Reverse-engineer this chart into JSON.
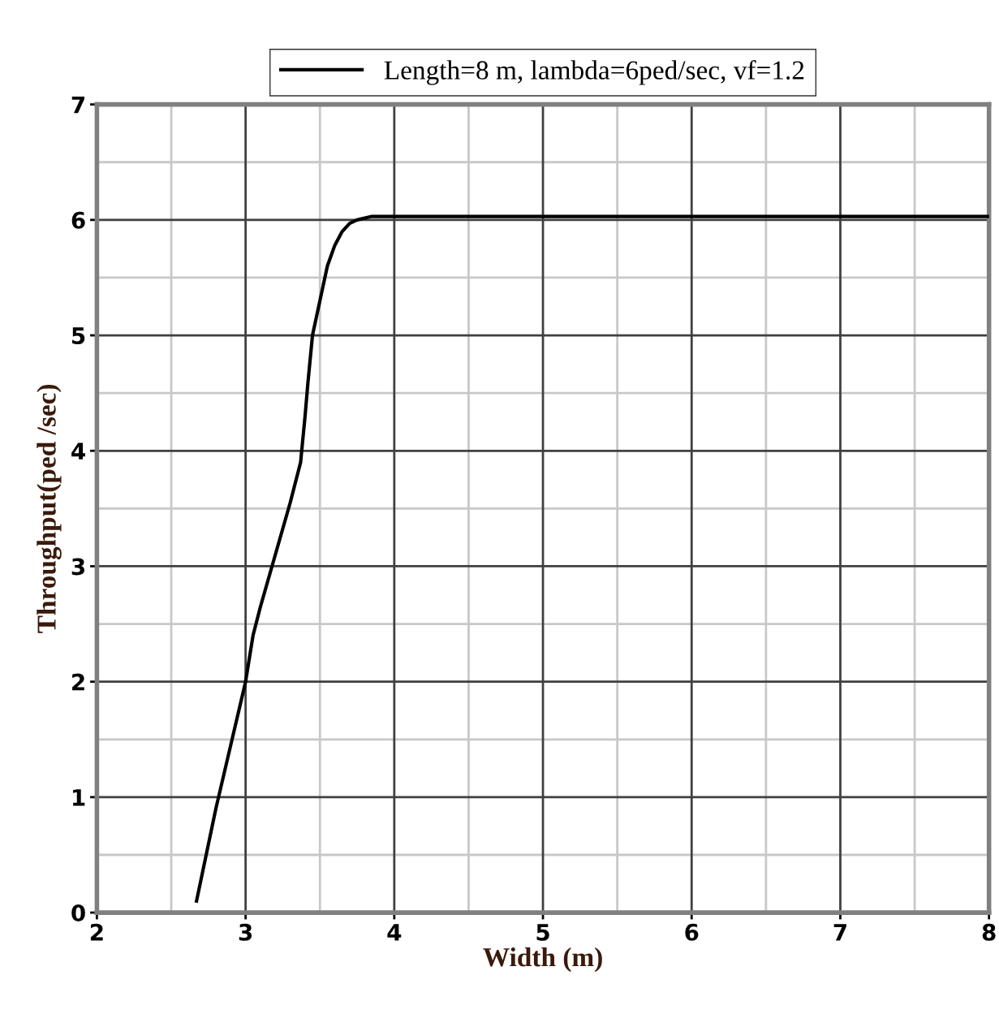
{
  "chart_data": {
    "type": "line",
    "xlabel": "Width (m)",
    "ylabel": "Throughput(ped /sec)",
    "series": [
      {
        "name": "Length=8 m, lambda=6ped/sec, vf=1.2",
        "color": "#000000",
        "x": [
          2.67,
          2.8,
          2.9,
          3.0,
          3.05,
          3.1,
          3.2,
          3.3,
          3.37,
          3.4,
          3.42,
          3.45,
          3.5,
          3.55,
          3.6,
          3.65,
          3.7,
          3.75,
          3.85,
          4.0,
          5.0,
          6.0,
          7.0,
          8.0
        ],
        "values": [
          0.1,
          0.9,
          1.45,
          2.0,
          2.4,
          2.65,
          3.1,
          3.55,
          3.9,
          4.3,
          4.6,
          5.0,
          5.3,
          5.6,
          5.78,
          5.9,
          5.97,
          6.0,
          6.03,
          6.03,
          6.03,
          6.03,
          6.03,
          6.03
        ]
      }
    ],
    "xlim": [
      2,
      8
    ],
    "ylim": [
      0,
      7
    ],
    "xticks": [
      2,
      3,
      4,
      5,
      6,
      7,
      8
    ],
    "yticks": [
      0,
      1,
      2,
      3,
      4,
      5,
      6,
      7
    ],
    "grid": true,
    "legend": "top",
    "marker": "none",
    "line_style": "solid"
  }
}
